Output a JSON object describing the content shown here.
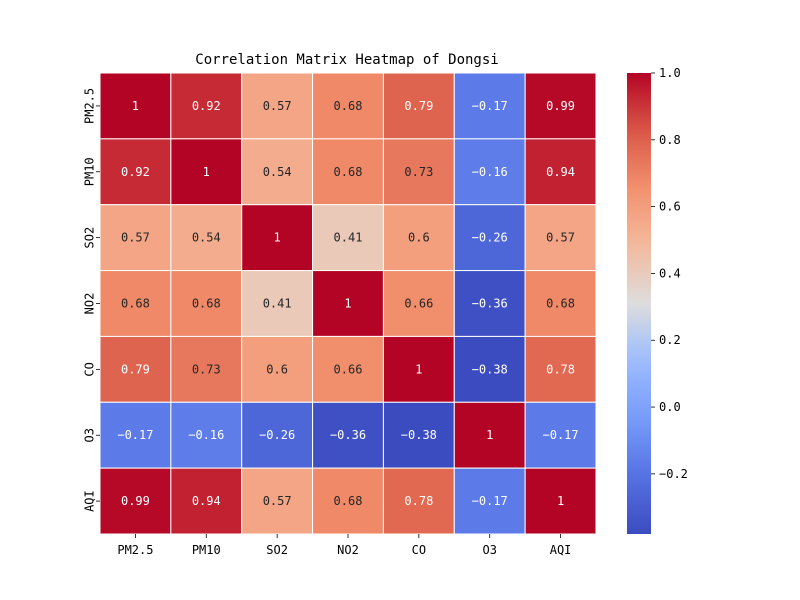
{
  "chart_data": {
    "type": "heatmap",
    "title": "Correlation Matrix Heatmap of Dongsi",
    "xlabel": "",
    "ylabel": "",
    "colormap": "coolwarm",
    "x_categories": [
      "PM2.5",
      "PM10",
      "SO2",
      "NO2",
      "CO",
      "O3",
      "AQI"
    ],
    "y_categories": [
      "PM2.5",
      "PM10",
      "SO2",
      "NO2",
      "CO",
      "O3",
      "AQI"
    ],
    "matrix": [
      [
        1,
        0.92,
        0.57,
        0.68,
        0.79,
        -0.17,
        0.99
      ],
      [
        0.92,
        1,
        0.54,
        0.68,
        0.73,
        -0.16,
        0.94
      ],
      [
        0.57,
        0.54,
        1,
        0.41,
        0.6,
        -0.26,
        0.57
      ],
      [
        0.68,
        0.68,
        0.41,
        1,
        0.66,
        -0.36,
        0.68
      ],
      [
        0.79,
        0.73,
        0.6,
        0.66,
        1,
        -0.38,
        0.78
      ],
      [
        -0.17,
        -0.16,
        -0.26,
        -0.36,
        -0.38,
        1,
        -0.17
      ],
      [
        0.99,
        0.94,
        0.57,
        0.68,
        0.78,
        -0.17,
        1
      ]
    ],
    "annotations": [
      [
        "1",
        "0.92",
        "0.57",
        "0.68",
        "0.79",
        "−0.17",
        "0.99"
      ],
      [
        "0.92",
        "1",
        "0.54",
        "0.68",
        "0.73",
        "−0.16",
        "0.94"
      ],
      [
        "0.57",
        "0.54",
        "1",
        "0.41",
        "0.6",
        "−0.26",
        "0.57"
      ],
      [
        "0.68",
        "0.68",
        "0.41",
        "1",
        "0.66",
        "−0.36",
        "0.68"
      ],
      [
        "0.79",
        "0.73",
        "0.6",
        "0.66",
        "1",
        "−0.38",
        "0.78"
      ],
      [
        "−0.17",
        "−0.16",
        "−0.26",
        "−0.36",
        "−0.38",
        "1",
        "−0.17"
      ],
      [
        "0.99",
        "0.94",
        "0.57",
        "0.68",
        "0.78",
        "−0.17",
        "1"
      ]
    ],
    "colorbar": {
      "vmin": -0.38,
      "vmax": 1.0,
      "ticks": [
        -0.2,
        0.0,
        0.2,
        0.4,
        0.6,
        0.8,
        1.0
      ],
      "tick_labels": [
        "−0.2",
        "0.0",
        "0.2",
        "0.4",
        "0.6",
        "0.8",
        "1.0"
      ]
    }
  }
}
